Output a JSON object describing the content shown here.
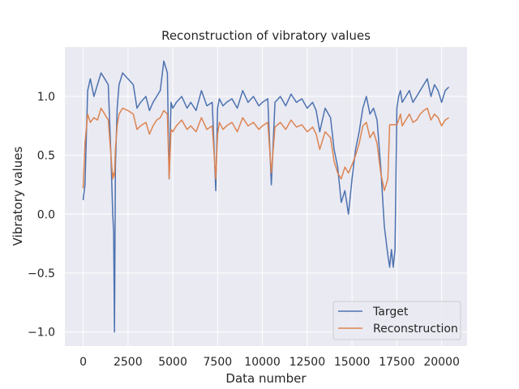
{
  "chart_data": {
    "type": "line",
    "title": "Reconstruction of vibratory values",
    "xlabel": "Data number",
    "ylabel": "Vibratory values",
    "xlim": [
      -1020,
      21420
    ],
    "ylim": [
      -1.12,
      1.42
    ],
    "xticks": [
      0,
      2500,
      5000,
      7500,
      10000,
      12500,
      15000,
      17500,
      20000
    ],
    "xtick_labels": [
      "0",
      "2500",
      "5000",
      "7500",
      "10000",
      "12500",
      "15000",
      "17500",
      "20000"
    ],
    "yticks": [
      -1.0,
      -0.5,
      0.0,
      0.5,
      1.0
    ],
    "ytick_labels": [
      "−1.0",
      "−0.5",
      "0.0",
      "0.5",
      "1.0"
    ],
    "grid": true,
    "legend_position": "lower-right",
    "series": [
      {
        "name": "Target",
        "color": "#4c72b0",
        "x": [
          0,
          100,
          250,
          400,
          600,
          800,
          1000,
          1200,
          1400,
          1550,
          1650,
          1700,
          1750,
          1800,
          1900,
          2000,
          2200,
          2500,
          2800,
          3000,
          3200,
          3500,
          3700,
          3900,
          4100,
          4300,
          4500,
          4700,
          4800,
          4900,
          5000,
          5200,
          5500,
          5800,
          6000,
          6300,
          6600,
          6900,
          7200,
          7400,
          7500,
          7600,
          7800,
          8000,
          8300,
          8600,
          8900,
          9200,
          9500,
          9800,
          10000,
          10300,
          10500,
          10700,
          11000,
          11300,
          11600,
          11900,
          12200,
          12500,
          12800,
          13000,
          13200,
          13500,
          13800,
          14000,
          14200,
          14400,
          14600,
          14800,
          15000,
          15200,
          15400,
          15600,
          15800,
          16000,
          16200,
          16400,
          16600,
          16800,
          17000,
          17100,
          17200,
          17300,
          17400,
          17500,
          17600,
          17700,
          17800,
          18000,
          18200,
          18400,
          18600,
          18800,
          19000,
          19200,
          19400,
          19600,
          19800,
          20000,
          20200,
          20400
        ],
        "y": [
          0.12,
          0.25,
          1.05,
          1.15,
          1.0,
          1.1,
          1.2,
          1.15,
          1.1,
          0.5,
          0.0,
          -0.15,
          -1.0,
          0.4,
          0.9,
          1.1,
          1.2,
          1.15,
          1.1,
          0.9,
          0.95,
          1.0,
          0.88,
          0.95,
          1.0,
          1.05,
          1.3,
          1.2,
          0.3,
          0.95,
          0.9,
          0.95,
          1.0,
          0.9,
          0.95,
          0.88,
          1.05,
          0.92,
          0.95,
          0.2,
          0.9,
          0.98,
          0.92,
          0.95,
          0.98,
          0.9,
          1.05,
          0.95,
          1.0,
          0.92,
          0.95,
          0.98,
          0.25,
          0.95,
          1.0,
          0.92,
          1.02,
          0.95,
          0.98,
          0.9,
          0.95,
          0.88,
          0.7,
          0.9,
          0.82,
          0.55,
          0.4,
          0.1,
          0.2,
          0.0,
          0.3,
          0.55,
          0.7,
          0.9,
          1.0,
          0.85,
          0.9,
          0.8,
          0.4,
          -0.1,
          -0.35,
          -0.45,
          -0.3,
          -0.45,
          -0.3,
          0.9,
          1.0,
          1.05,
          0.95,
          1.0,
          1.05,
          0.95,
          1.0,
          1.05,
          1.1,
          1.15,
          1.0,
          1.1,
          1.05,
          0.95,
          1.05,
          1.08
        ]
      },
      {
        "name": "Reconstruction",
        "color": "#dd8452",
        "x": [
          0,
          100,
          250,
          400,
          600,
          800,
          1000,
          1200,
          1400,
          1550,
          1650,
          1700,
          1750,
          1800,
          1900,
          2000,
          2200,
          2500,
          2800,
          3000,
          3200,
          3500,
          3700,
          3900,
          4100,
          4300,
          4500,
          4700,
          4800,
          4900,
          5000,
          5200,
          5500,
          5800,
          6000,
          6300,
          6600,
          6900,
          7200,
          7400,
          7500,
          7600,
          7800,
          8000,
          8300,
          8600,
          8900,
          9200,
          9500,
          9800,
          10000,
          10300,
          10500,
          10700,
          11000,
          11300,
          11600,
          11900,
          12200,
          12500,
          12800,
          13000,
          13200,
          13500,
          13800,
          14000,
          14200,
          14400,
          14600,
          14800,
          15000,
          15200,
          15400,
          15600,
          15800,
          16000,
          16200,
          16400,
          16600,
          16800,
          17000,
          17100,
          17200,
          17300,
          17400,
          17500,
          17600,
          17700,
          17800,
          18000,
          18200,
          18400,
          18600,
          18800,
          19000,
          19200,
          19400,
          19600,
          19800,
          20000,
          20200,
          20400
        ],
        "y": [
          0.22,
          0.6,
          0.85,
          0.78,
          0.82,
          0.8,
          0.9,
          0.85,
          0.8,
          0.5,
          0.3,
          0.35,
          0.32,
          0.55,
          0.75,
          0.85,
          0.9,
          0.88,
          0.85,
          0.72,
          0.75,
          0.78,
          0.68,
          0.75,
          0.8,
          0.82,
          0.88,
          0.85,
          0.3,
          0.72,
          0.7,
          0.75,
          0.8,
          0.72,
          0.75,
          0.7,
          0.82,
          0.72,
          0.75,
          0.3,
          0.68,
          0.78,
          0.72,
          0.75,
          0.78,
          0.7,
          0.82,
          0.75,
          0.78,
          0.72,
          0.75,
          0.78,
          0.35,
          0.74,
          0.78,
          0.72,
          0.8,
          0.74,
          0.76,
          0.7,
          0.74,
          0.68,
          0.55,
          0.7,
          0.65,
          0.45,
          0.35,
          0.3,
          0.4,
          0.35,
          0.42,
          0.5,
          0.6,
          0.75,
          0.78,
          0.65,
          0.7,
          0.6,
          0.35,
          0.2,
          0.3,
          0.76,
          0.76,
          0.76,
          0.76,
          0.76,
          0.8,
          0.85,
          0.75,
          0.8,
          0.85,
          0.78,
          0.8,
          0.85,
          0.88,
          0.9,
          0.8,
          0.85,
          0.82,
          0.75,
          0.8,
          0.82
        ]
      }
    ]
  }
}
